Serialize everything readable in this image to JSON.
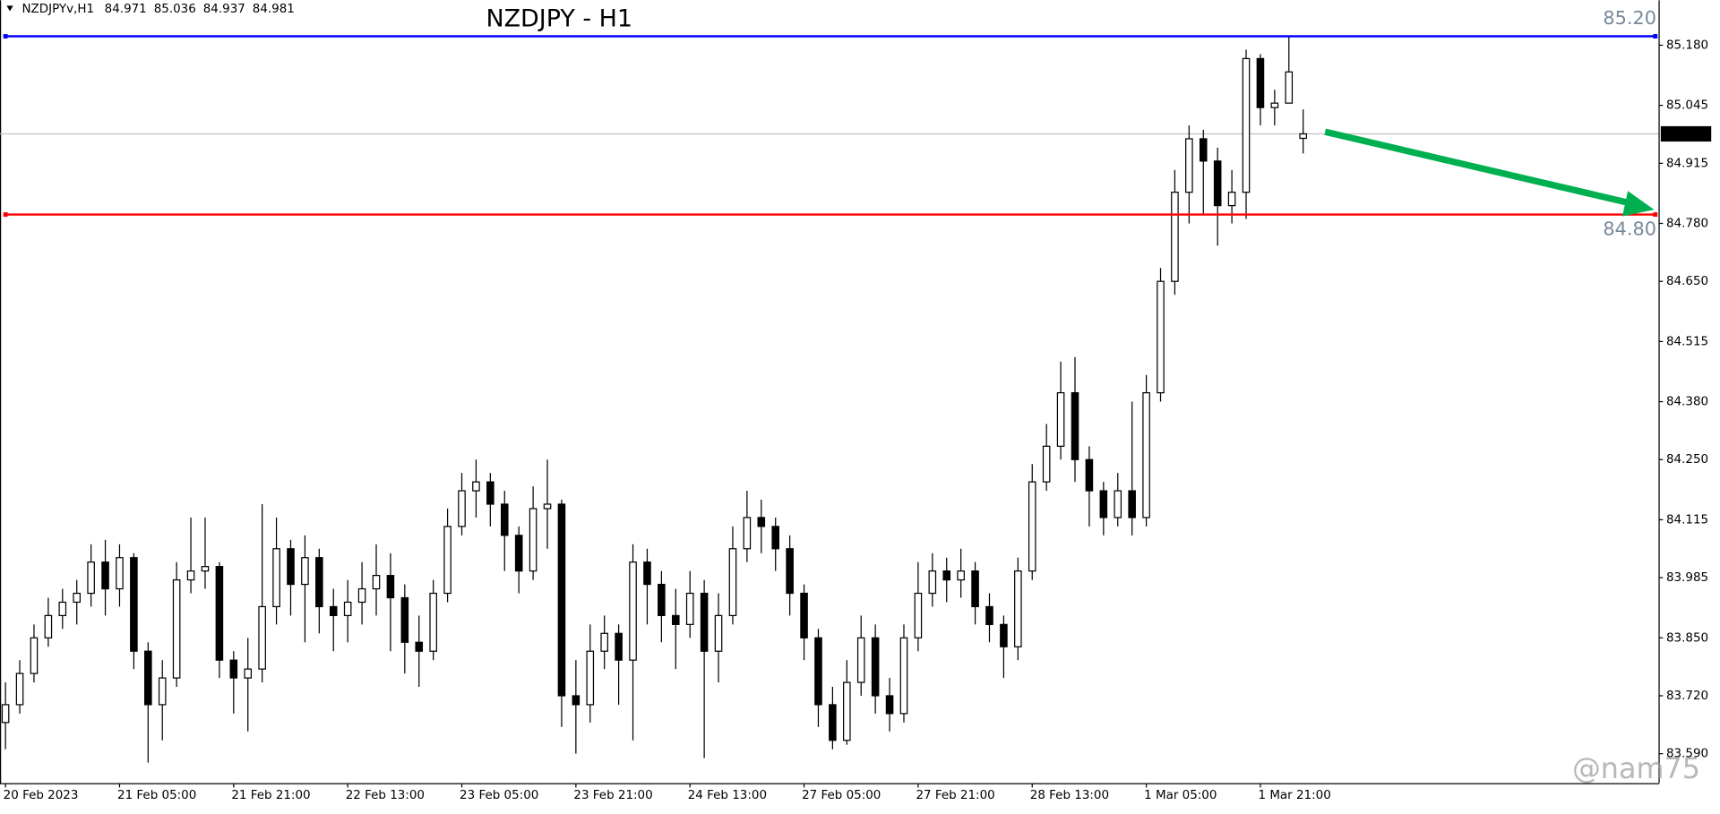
{
  "chart_data": {
    "type": "candlestick",
    "title": "NZDJPY - H1",
    "header": {
      "symbol": "NZDJPYv,H1"
    },
    "watermark": "@nam75",
    "categories": [
      "20 Feb 2023",
      null,
      null,
      null,
      null,
      null,
      null,
      null,
      "21 Feb 05:00",
      null,
      null,
      null,
      null,
      null,
      null,
      null,
      "21 Feb 21:00",
      null,
      null,
      null,
      null,
      null,
      null,
      null,
      "22 Feb 13:00",
      null,
      null,
      null,
      null,
      null,
      null,
      null,
      "23 Feb 05:00",
      null,
      null,
      null,
      null,
      null,
      null,
      null,
      "23 Feb 21:00",
      null,
      null,
      null,
      null,
      null,
      null,
      null,
      "24 Feb 13:00",
      null,
      null,
      null,
      null,
      null,
      null,
      null,
      "27 Feb 05:00",
      null,
      null,
      null,
      null,
      null,
      null,
      null,
      "27 Feb 21:00",
      null,
      null,
      null,
      null,
      null,
      null,
      null,
      "28 Feb 13:00",
      null,
      null,
      null,
      null,
      null,
      null,
      null,
      "1 Mar 05:00",
      null,
      null,
      null,
      null,
      null,
      null,
      null,
      "1 Mar 21:00",
      null,
      null,
      null
    ],
    "open": [
      83.66,
      83.7,
      83.77,
      83.85,
      83.9,
      83.93,
      83.95,
      84.02,
      83.96,
      84.03,
      83.82,
      83.7,
      83.76,
      83.98,
      84.0,
      84.01,
      83.8,
      83.76,
      83.78,
      83.92,
      84.05,
      83.97,
      84.03,
      83.92,
      83.9,
      83.93,
      83.96,
      83.99,
      83.94,
      83.84,
      83.82,
      83.95,
      84.1,
      84.18,
      84.2,
      84.15,
      84.08,
      84.0,
      84.14,
      84.15,
      83.72,
      83.7,
      83.82,
      83.86,
      83.8,
      84.02,
      83.97,
      83.9,
      83.88,
      83.95,
      83.82,
      83.9,
      84.05,
      84.12,
      84.1,
      84.05,
      83.95,
      83.85,
      83.7,
      83.62,
      83.75,
      83.85,
      83.72,
      83.68,
      83.85,
      83.95,
      84.0,
      83.98,
      84.0,
      83.92,
      83.88,
      83.83,
      84.0,
      84.2,
      84.28,
      84.4,
      84.25,
      84.18,
      84.12,
      84.18,
      84.12,
      84.4,
      84.65,
      84.85,
      84.97,
      84.92,
      84.82,
      84.85,
      85.15,
      85.04,
      85.05,
      84.971
    ],
    "high": [
      83.75,
      83.8,
      83.88,
      83.94,
      83.96,
      83.98,
      84.06,
      84.07,
      84.06,
      84.04,
      83.84,
      83.8,
      84.02,
      84.12,
      84.12,
      84.02,
      83.82,
      83.85,
      84.15,
      84.12,
      84.07,
      84.08,
      84.05,
      83.96,
      83.98,
      84.02,
      84.06,
      84.04,
      83.97,
      83.9,
      83.98,
      84.14,
      84.22,
      84.25,
      84.22,
      84.18,
      84.1,
      84.19,
      84.25,
      84.16,
      83.8,
      83.88,
      83.9,
      83.88,
      84.06,
      84.05,
      84.0,
      83.96,
      84.0,
      83.98,
      83.95,
      84.1,
      84.18,
      84.16,
      84.12,
      84.08,
      83.97,
      83.87,
      83.74,
      83.8,
      83.9,
      83.88,
      83.76,
      83.88,
      84.02,
      84.04,
      84.03,
      84.05,
      84.02,
      83.95,
      83.9,
      84.03,
      84.24,
      84.33,
      84.47,
      84.48,
      84.28,
      84.2,
      84.22,
      84.38,
      84.44,
      84.68,
      84.9,
      85.0,
      84.99,
      84.95,
      84.9,
      85.17,
      85.16,
      85.08,
      85.2,
      85.036
    ],
    "low": [
      83.6,
      83.68,
      83.75,
      83.83,
      83.87,
      83.88,
      83.92,
      83.9,
      83.92,
      83.78,
      83.57,
      83.62,
      83.74,
      83.95,
      83.96,
      83.76,
      83.68,
      83.64,
      83.75,
      83.88,
      83.9,
      83.84,
      83.86,
      83.82,
      83.84,
      83.88,
      83.9,
      83.82,
      83.77,
      83.74,
      83.8,
      83.93,
      84.08,
      84.12,
      84.1,
      84.0,
      83.95,
      83.98,
      84.05,
      83.65,
      83.59,
      83.66,
      83.78,
      83.7,
      83.62,
      83.88,
      83.84,
      83.78,
      83.85,
      83.58,
      83.75,
      83.88,
      84.02,
      84.04,
      84.0,
      83.9,
      83.8,
      83.65,
      83.6,
      83.61,
      83.72,
      83.68,
      83.64,
      83.66,
      83.82,
      83.92,
      83.93,
      83.94,
      83.88,
      83.84,
      83.76,
      83.8,
      83.98,
      84.18,
      84.25,
      84.2,
      84.1,
      84.08,
      84.1,
      84.08,
      84.1,
      84.38,
      84.62,
      84.78,
      84.8,
      84.73,
      84.78,
      84.79,
      85.0,
      85.0,
      85.05,
      84.937
    ],
    "close": [
      83.7,
      83.77,
      83.85,
      83.9,
      83.93,
      83.95,
      84.02,
      83.96,
      84.03,
      83.82,
      83.7,
      83.76,
      83.98,
      84.0,
      84.01,
      83.8,
      83.76,
      83.78,
      83.92,
      84.05,
      83.97,
      84.03,
      83.92,
      83.9,
      83.93,
      83.96,
      83.99,
      83.94,
      83.84,
      83.82,
      83.95,
      84.1,
      84.18,
      84.2,
      84.15,
      84.08,
      84.0,
      84.14,
      84.15,
      83.72,
      83.7,
      83.82,
      83.86,
      83.8,
      84.02,
      83.97,
      83.9,
      83.88,
      83.95,
      83.82,
      83.9,
      84.05,
      84.12,
      84.1,
      84.05,
      83.95,
      83.85,
      83.7,
      83.62,
      83.75,
      83.85,
      83.72,
      83.68,
      83.85,
      83.95,
      84.0,
      83.98,
      84.0,
      83.92,
      83.88,
      83.83,
      84.0,
      84.2,
      84.28,
      84.4,
      84.25,
      84.18,
      84.12,
      84.18,
      84.12,
      84.4,
      84.65,
      84.85,
      84.97,
      84.92,
      84.82,
      84.85,
      85.15,
      85.04,
      85.05,
      85.12,
      84.981
    ],
    "ylim": [
      83.524,
      85.281
    ],
    "yticks": [
      {
        "value": 85.18,
        "label": "85.180"
      },
      85.045,
      84.915,
      {
        "value": 84.78,
        "label": "84.780"
      },
      {
        "value": 84.65,
        "label": "84.650"
      },
      84.515,
      {
        "value": 84.38,
        "label": "84.380"
      },
      {
        "value": 84.25,
        "label": "84.250"
      },
      84.115,
      83.985,
      {
        "value": 83.85,
        "label": "83.850"
      },
      {
        "value": 83.72,
        "label": "83.720"
      },
      {
        "value": 83.59,
        "label": "83.590"
      }
    ],
    "levels": [
      {
        "value": 85.2,
        "label": "85.20",
        "color": "#0000ff"
      },
      {
        "value": 84.8,
        "label": "84.80",
        "color": "#ff0000"
      }
    ],
    "current_price": {
      "value": 84.981,
      "label": "84.981"
    },
    "bull_color": "#ffffff",
    "bear_color": "#000000"
  }
}
